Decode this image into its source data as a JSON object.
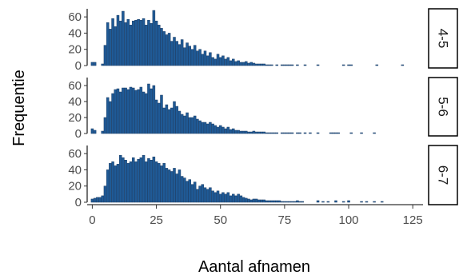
{
  "chart_data": {
    "type": "histogram",
    "xlabel": "Aantal afnamen",
    "ylabel": "Frequentie",
    "x_ticks": [
      0,
      25,
      50,
      75,
      100,
      125
    ],
    "y_ticks": [
      0,
      20,
      40,
      60
    ],
    "xlim": [
      -2,
      129
    ],
    "ylim": [
      0,
      70
    ],
    "grid": false,
    "bar_color": "#1f5a96",
    "bar_edge_color": "#1f3f66",
    "facets": [
      {
        "label": "4-5",
        "bins": [
          [
            0,
            4
          ],
          [
            1,
            4
          ],
          [
            4,
            2
          ],
          [
            5,
            25
          ],
          [
            6,
            53
          ],
          [
            7,
            45
          ],
          [
            8,
            58
          ],
          [
            9,
            48
          ],
          [
            10,
            62
          ],
          [
            11,
            55
          ],
          [
            12,
            67
          ],
          [
            13,
            53
          ],
          [
            14,
            57
          ],
          [
            15,
            50
          ],
          [
            16,
            55
          ],
          [
            17,
            56
          ],
          [
            18,
            57
          ],
          [
            19,
            56
          ],
          [
            20,
            58
          ],
          [
            21,
            50
          ],
          [
            22,
            56
          ],
          [
            23,
            52
          ],
          [
            24,
            68
          ],
          [
            25,
            55
          ],
          [
            26,
            50
          ],
          [
            27,
            46
          ],
          [
            28,
            42
          ],
          [
            29,
            38
          ],
          [
            30,
            40
          ],
          [
            31,
            30
          ],
          [
            32,
            35
          ],
          [
            33,
            30
          ],
          [
            34,
            26
          ],
          [
            35,
            32
          ],
          [
            36,
            22
          ],
          [
            37,
            28
          ],
          [
            38,
            24
          ],
          [
            39,
            20
          ],
          [
            40,
            25
          ],
          [
            41,
            18
          ],
          [
            42,
            20
          ],
          [
            43,
            14
          ],
          [
            44,
            18
          ],
          [
            45,
            12
          ],
          [
            46,
            16
          ],
          [
            47,
            10
          ],
          [
            48,
            8
          ],
          [
            49,
            14
          ],
          [
            50,
            10
          ],
          [
            51,
            12
          ],
          [
            52,
            8
          ],
          [
            53,
            10
          ],
          [
            54,
            6
          ],
          [
            55,
            8
          ],
          [
            56,
            5
          ],
          [
            57,
            6
          ],
          [
            58,
            4
          ],
          [
            59,
            4
          ],
          [
            60,
            5
          ],
          [
            61,
            3
          ],
          [
            62,
            4
          ],
          [
            63,
            3
          ],
          [
            64,
            2
          ],
          [
            65,
            2
          ],
          [
            66,
            2
          ],
          [
            67,
            2
          ],
          [
            68,
            1
          ],
          [
            69,
            1
          ],
          [
            70,
            1
          ],
          [
            72,
            1
          ],
          [
            74,
            1
          ],
          [
            75,
            1
          ],
          [
            76,
            1
          ],
          [
            77,
            1
          ],
          [
            78,
            1
          ],
          [
            80,
            1
          ],
          [
            83,
            1
          ],
          [
            88,
            1
          ],
          [
            98,
            1
          ],
          [
            100,
            1
          ],
          [
            101,
            1
          ],
          [
            111,
            1
          ],
          [
            121,
            1
          ]
        ]
      },
      {
        "label": "5-6",
        "bins": [
          [
            0,
            6
          ],
          [
            1,
            4
          ],
          [
            4,
            3
          ],
          [
            5,
            20
          ],
          [
            6,
            45
          ],
          [
            7,
            40
          ],
          [
            8,
            50
          ],
          [
            9,
            55
          ],
          [
            10,
            56
          ],
          [
            11,
            52
          ],
          [
            12,
            57
          ],
          [
            13,
            57
          ],
          [
            14,
            55
          ],
          [
            15,
            58
          ],
          [
            16,
            57
          ],
          [
            17,
            54
          ],
          [
            18,
            55
          ],
          [
            19,
            58
          ],
          [
            20,
            52
          ],
          [
            21,
            50
          ],
          [
            22,
            62
          ],
          [
            23,
            56
          ],
          [
            24,
            60
          ],
          [
            25,
            42
          ],
          [
            26,
            38
          ],
          [
            27,
            48
          ],
          [
            28,
            32
          ],
          [
            29,
            36
          ],
          [
            30,
            30
          ],
          [
            31,
            32
          ],
          [
            32,
            40
          ],
          [
            33,
            34
          ],
          [
            34,
            28
          ],
          [
            35,
            24
          ],
          [
            36,
            22
          ],
          [
            37,
            26
          ],
          [
            38,
            20
          ],
          [
            39,
            20
          ],
          [
            40,
            22
          ],
          [
            41,
            18
          ],
          [
            42,
            16
          ],
          [
            43,
            14
          ],
          [
            44,
            14
          ],
          [
            45,
            12
          ],
          [
            46,
            14
          ],
          [
            47,
            12
          ],
          [
            48,
            10
          ],
          [
            49,
            8
          ],
          [
            50,
            10
          ],
          [
            51,
            8
          ],
          [
            52,
            6
          ],
          [
            53,
            8
          ],
          [
            54,
            5
          ],
          [
            55,
            6
          ],
          [
            56,
            4
          ],
          [
            57,
            4
          ],
          [
            58,
            3
          ],
          [
            59,
            3
          ],
          [
            60,
            3
          ],
          [
            61,
            2
          ],
          [
            62,
            2
          ],
          [
            63,
            3
          ],
          [
            64,
            2
          ],
          [
            65,
            2
          ],
          [
            66,
            2
          ],
          [
            67,
            2
          ],
          [
            68,
            1
          ],
          [
            69,
            1
          ],
          [
            70,
            1
          ],
          [
            71,
            1
          ],
          [
            72,
            1
          ],
          [
            74,
            1
          ],
          [
            75,
            1
          ],
          [
            76,
            1
          ],
          [
            77,
            1
          ],
          [
            78,
            1
          ],
          [
            80,
            1
          ],
          [
            81,
            1
          ],
          [
            83,
            1
          ],
          [
            85,
            1
          ],
          [
            88,
            1
          ],
          [
            93,
            1
          ],
          [
            94,
            1
          ],
          [
            95,
            1
          ],
          [
            96,
            1
          ],
          [
            101,
            1
          ],
          [
            105,
            1
          ],
          [
            110,
            1
          ]
        ]
      },
      {
        "label": "6-7",
        "bins": [
          [
            0,
            4
          ],
          [
            1,
            5
          ],
          [
            2,
            6
          ],
          [
            3,
            6
          ],
          [
            4,
            8
          ],
          [
            5,
            20
          ],
          [
            6,
            40
          ],
          [
            7,
            48
          ],
          [
            8,
            50
          ],
          [
            9,
            45
          ],
          [
            10,
            47
          ],
          [
            11,
            58
          ],
          [
            12,
            55
          ],
          [
            13,
            52
          ],
          [
            14,
            48
          ],
          [
            15,
            50
          ],
          [
            16,
            55
          ],
          [
            17,
            50
          ],
          [
            18,
            53
          ],
          [
            19,
            55
          ],
          [
            20,
            58
          ],
          [
            21,
            50
          ],
          [
            22,
            54
          ],
          [
            23,
            52
          ],
          [
            24,
            56
          ],
          [
            25,
            50
          ],
          [
            26,
            48
          ],
          [
            27,
            45
          ],
          [
            28,
            48
          ],
          [
            29,
            42
          ],
          [
            30,
            40
          ],
          [
            31,
            38
          ],
          [
            32,
            42
          ],
          [
            33,
            35
          ],
          [
            34,
            40
          ],
          [
            35,
            32
          ],
          [
            36,
            30
          ],
          [
            37,
            26
          ],
          [
            38,
            28
          ],
          [
            39,
            22
          ],
          [
            40,
            25
          ],
          [
            41,
            16
          ],
          [
            42,
            20
          ],
          [
            43,
            22
          ],
          [
            44,
            18
          ],
          [
            45,
            16
          ],
          [
            46,
            18
          ],
          [
            47,
            14
          ],
          [
            48,
            12
          ],
          [
            49,
            14
          ],
          [
            50,
            10
          ],
          [
            51,
            12
          ],
          [
            52,
            10
          ],
          [
            53,
            12
          ],
          [
            54,
            8
          ],
          [
            55,
            10
          ],
          [
            56,
            8
          ],
          [
            57,
            10
          ],
          [
            58,
            8
          ],
          [
            59,
            6
          ],
          [
            60,
            5
          ],
          [
            61,
            4
          ],
          [
            62,
            3
          ],
          [
            63,
            4
          ],
          [
            64,
            4
          ],
          [
            65,
            3
          ],
          [
            66,
            3
          ],
          [
            67,
            3
          ],
          [
            68,
            2
          ],
          [
            69,
            2
          ],
          [
            70,
            2
          ],
          [
            71,
            2
          ],
          [
            72,
            2
          ],
          [
            73,
            2
          ],
          [
            74,
            1
          ],
          [
            75,
            1
          ],
          [
            76,
            1
          ],
          [
            77,
            1
          ],
          [
            78,
            1
          ],
          [
            79,
            1
          ],
          [
            80,
            2
          ],
          [
            81,
            1
          ],
          [
            82,
            1
          ],
          [
            88,
            2
          ],
          [
            90,
            1
          ],
          [
            92,
            1
          ],
          [
            95,
            2
          ],
          [
            98,
            1
          ],
          [
            100,
            2
          ],
          [
            105,
            1
          ],
          [
            107,
            1
          ],
          [
            110,
            1
          ],
          [
            113,
            1
          ]
        ]
      }
    ]
  }
}
